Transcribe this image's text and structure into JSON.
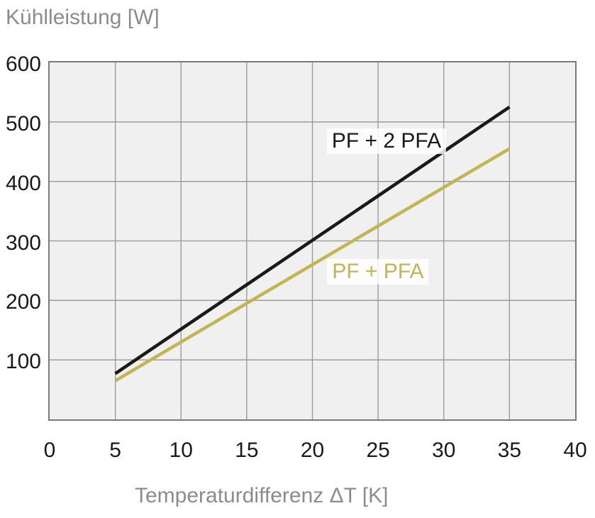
{
  "figure": {
    "y_axis_title": "Kühlleistung [W]",
    "x_axis_title": "Temperaturdifferenz ΔT [K]"
  },
  "chart_data": {
    "type": "line",
    "title": "Kühlleistung [W]",
    "xlabel": "Temperaturdifferenz ΔT [K]",
    "ylabel": "Kühlleistung [W]",
    "xlim": [
      0,
      40
    ],
    "ylim": [
      0,
      600
    ],
    "x_ticks": [
      0,
      5,
      10,
      15,
      20,
      25,
      30,
      35,
      40
    ],
    "y_ticks": [
      100,
      200,
      300,
      400,
      500,
      600
    ],
    "grid": true,
    "legend_position": "inline-labels",
    "series": [
      {
        "name": "PF + 2 PFA",
        "color": "#1a1a1a",
        "x": [
          5,
          35
        ],
        "y": [
          77,
          525
        ]
      },
      {
        "name": "PF + PFA",
        "color": "#c3b454",
        "x": [
          5,
          35
        ],
        "y": [
          65,
          455
        ]
      }
    ],
    "colors": {
      "plot_background": "#f0f0f0",
      "gridline": "#969696",
      "plot_border": "#7a7a7a",
      "axis_text": "#1a1a1a",
      "title_text": "#8c8c8c"
    }
  }
}
